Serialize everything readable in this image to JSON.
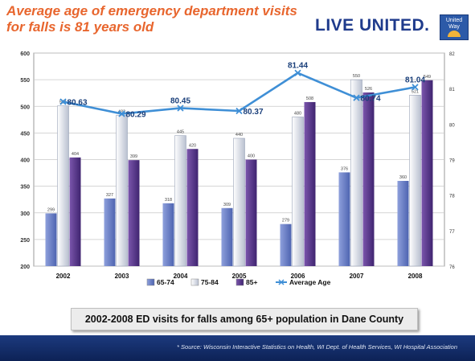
{
  "headline": "Average age of emergency department visits for falls is 81 years old",
  "brand": {
    "name": "LIVE UNITED.",
    "logo_text": "United Way"
  },
  "caption": "2002-2008 ED visits for falls among 65+ population in Dane County",
  "source": "* Source: Wisconsin Interactive Statistics on Health, WI Dept. of Health Services, WI Hospital Association",
  "colors": {
    "headline": "#e8662e",
    "brand": "#1f3b8c",
    "s1": "#6f84c9",
    "s2": "#e6eaf2",
    "s3": "#5e3a8e",
    "line": "#3f8fd6",
    "footer": "#1c3a7e"
  },
  "chart_data": {
    "type": "bar",
    "categories": [
      "2002",
      "2003",
      "2004",
      "2005",
      "2006",
      "2007",
      "2008"
    ],
    "series": [
      {
        "name": "65-74",
        "values": [
          299,
          327,
          318,
          309,
          279,
          376,
          360
        ]
      },
      {
        "name": "75-84",
        "values": [
          501,
          483,
          445,
          440,
          480,
          550,
          521
        ]
      },
      {
        "name": "85+",
        "values": [
          404,
          399,
          420,
          400,
          508,
          526,
          549
        ]
      }
    ],
    "line_series": {
      "name": "Average Age",
      "values": [
        80.63,
        80.29,
        80.45,
        80.37,
        81.44,
        80.74,
        81.04
      ]
    },
    "ylim": [
      200,
      600
    ],
    "yticks": [
      "200",
      "250",
      "300",
      "350",
      "400",
      "450",
      "500",
      "550",
      "600"
    ],
    "y2lim": [
      76,
      82
    ],
    "y2ticks": [
      "76",
      "77",
      "78",
      "79",
      "80",
      "81",
      "82"
    ],
    "legend_position": "bottom",
    "grid": true
  }
}
